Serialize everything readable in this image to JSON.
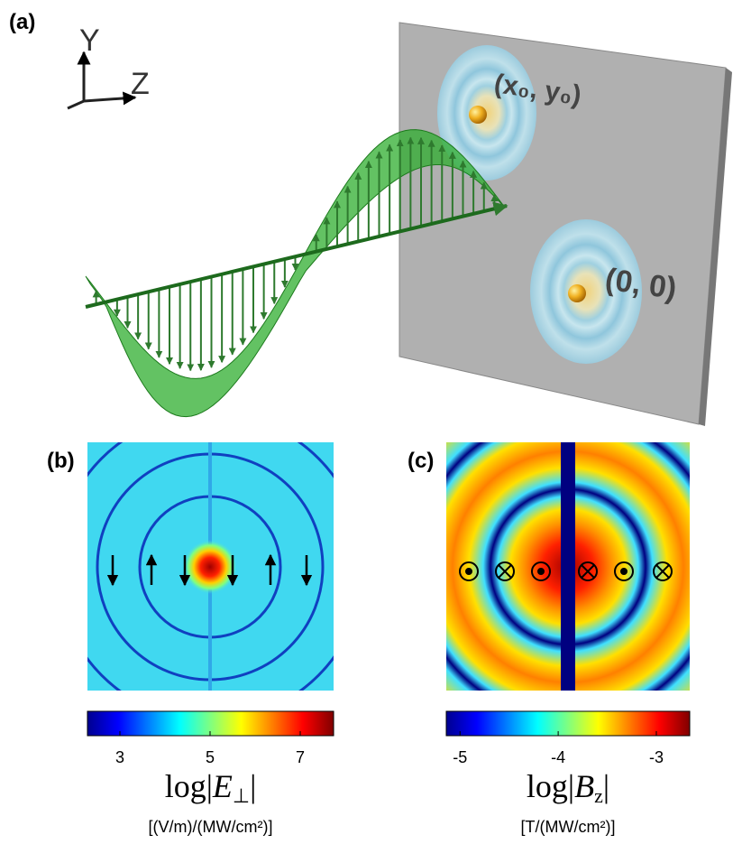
{
  "panels": {
    "a": {
      "label": "(a)",
      "axes": {
        "y": "Y",
        "z": "Z"
      },
      "points": [
        {
          "label": "(x₀, y₀)"
        },
        {
          "label": "(0, 0)"
        }
      ]
    },
    "b": {
      "label": "(b)",
      "colorbar": {
        "clim": [
          2.28,
          7.74
        ],
        "ticks": [
          3,
          5,
          7
        ],
        "title": {
          "prefix": "log|",
          "symbol": "E",
          "sub": "⊥",
          "suffix": "|"
        },
        "unit": "[(V/m)/(MW/cm²)]"
      }
    },
    "c": {
      "label": "(c)",
      "colorbar": {
        "clim": [
          -5.14,
          -2.66
        ],
        "ticks": [
          -5,
          -4,
          -3
        ],
        "title": {
          "prefix": "log|",
          "symbol": "B",
          "sub": "z",
          "suffix": "|"
        },
        "unit": "[T/(MW/cm²)]"
      }
    }
  }
}
